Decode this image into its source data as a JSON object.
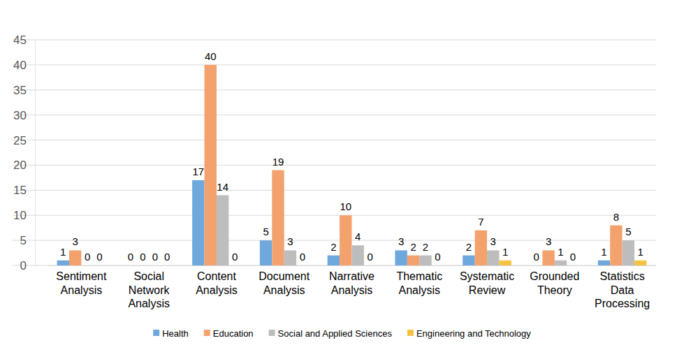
{
  "chart_data": {
    "type": "bar",
    "categories": [
      "Sentiment Analysis",
      "Social Network Analysis",
      "Content Analysis",
      "Document Analysis",
      "Narrative Analysis",
      "Thematic Analysis",
      "Systematic Review",
      "Grounded Theory",
      "Statistics Data Processing"
    ],
    "series": [
      {
        "name": "Health",
        "color": "#6fa8dc",
        "values": [
          1,
          0,
          17,
          5,
          2,
          3,
          2,
          0,
          1
        ]
      },
      {
        "name": "Education",
        "color": "#f4a26d",
        "values": [
          3,
          0,
          40,
          19,
          10,
          2,
          7,
          3,
          8
        ]
      },
      {
        "name": "Social and Applied Sciences",
        "color": "#bdbdbd",
        "values": [
          0,
          0,
          14,
          3,
          4,
          2,
          3,
          1,
          5
        ]
      },
      {
        "name": "Engineering and Technology",
        "color": "#f5c342",
        "values": [
          0,
          0,
          0,
          0,
          0,
          0,
          1,
          0,
          1
        ]
      }
    ],
    "ylim": [
      0,
      45
    ],
    "yticks": [
      0,
      5,
      10,
      15,
      20,
      25,
      30,
      35,
      40,
      45
    ],
    "grid": true,
    "data_labels": true,
    "legend": "bottom"
  }
}
